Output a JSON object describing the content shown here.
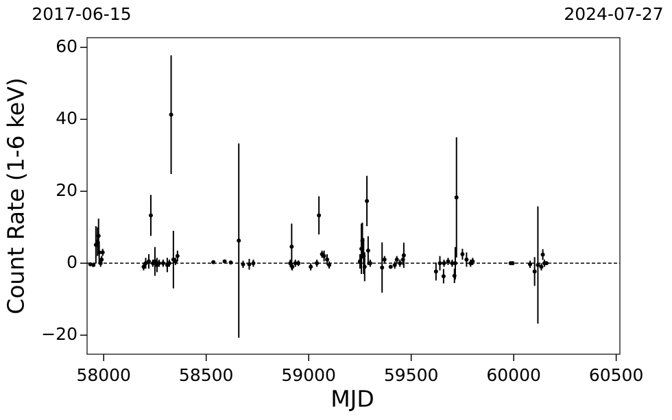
{
  "chart_data": {
    "type": "scatter",
    "xlabel": "MJD",
    "ylabel": "Count Rate (1-6 keV)",
    "color": "#000000",
    "x": [
      57935,
      57950,
      57962,
      57970,
      57975,
      57978,
      57985,
      57990,
      57995,
      58195,
      58205,
      58220,
      58230,
      58240,
      58250,
      58260,
      58270,
      58290,
      58310,
      58320,
      58329,
      58340,
      58350,
      58360,
      58535,
      58590,
      58620,
      58659,
      58680,
      58710,
      58730,
      58910,
      58917,
      58920,
      58935,
      58950,
      59010,
      59040,
      59050,
      59065,
      59075,
      59090,
      59100,
      59250,
      59257,
      59262,
      59268,
      59273,
      59284,
      59290,
      59300,
      59358,
      59370,
      59400,
      59420,
      59430,
      59445,
      59460,
      59464,
      59621,
      59640,
      59658,
      59660,
      59680,
      59700,
      59711,
      59715,
      59721,
      59750,
      59770,
      59790,
      59800,
      59985,
      59995,
      60080,
      60102,
      60118,
      60135,
      60150,
      60142,
      60160
    ],
    "values": [
      -0.3,
      -0.5,
      5.1,
      6,
      7.6,
      3,
      0,
      1,
      3,
      -1,
      0,
      0.5,
      13.3,
      0,
      0.5,
      -0.5,
      0,
      0,
      -0.5,
      0,
      41.3,
      1,
      0.5,
      2,
      0.3,
      0.5,
      0.2,
      6.3,
      -0.3,
      -0.3,
      0,
      0,
      4.6,
      -1,
      0,
      0,
      -1,
      0,
      13.3,
      2.5,
      2,
      1,
      -0.5,
      0.5,
      4,
      6.3,
      2,
      -1,
      17.3,
      3.5,
      0,
      -1.2,
      1,
      -1,
      -0.5,
      1,
      0,
      1,
      2.2,
      -2.3,
      0,
      -3.6,
      0,
      0.5,
      0,
      -3.5,
      0,
      18.3,
      2.5,
      1,
      0,
      0.5,
      0,
      0,
      -0.3,
      -2.3,
      -0.5,
      -1,
      0,
      2.4,
      0
    ],
    "errors": [
      0.5,
      0.5,
      5.2,
      4,
      4.8,
      3,
      1,
      1,
      1,
      1,
      1.5,
      2,
      5.7,
      1,
      4,
      2,
      1,
      1,
      2,
      1,
      16.5,
      8,
      1,
      1.5,
      0.3,
      0.4,
      0.3,
      27,
      1,
      1.5,
      1,
      1,
      6.4,
      1,
      1,
      0.8,
      1,
      1,
      5.3,
      1,
      1.5,
      1.5,
      1,
      2,
      7,
      5,
      5,
      4,
      7,
      4,
      1,
      7,
      1,
      0.5,
      1,
      1,
      1,
      1.5,
      3.5,
      2.5,
      2,
      2,
      1,
      1,
      1,
      2,
      4.5,
      16.7,
      1.5,
      2,
      1,
      1,
      0.3,
      0.3,
      1,
      4,
      16.3,
      1,
      1,
      1.5,
      0.5
    ],
    "hline": 0,
    "xlim": [
      57919,
      60518
    ],
    "ylim": [
      -25.3,
      62.7
    ],
    "xticks": [
      58000,
      58500,
      59000,
      59500,
      60000,
      60500
    ],
    "yticks": [
      {
        "value": -20,
        "label": "−20"
      },
      0,
      20,
      40,
      60
    ],
    "x2ticks": [
      {
        "value": 57919,
        "label": "2017-06-15"
      },
      {
        "value": 60518,
        "label": "2024-07-27"
      }
    ]
  }
}
